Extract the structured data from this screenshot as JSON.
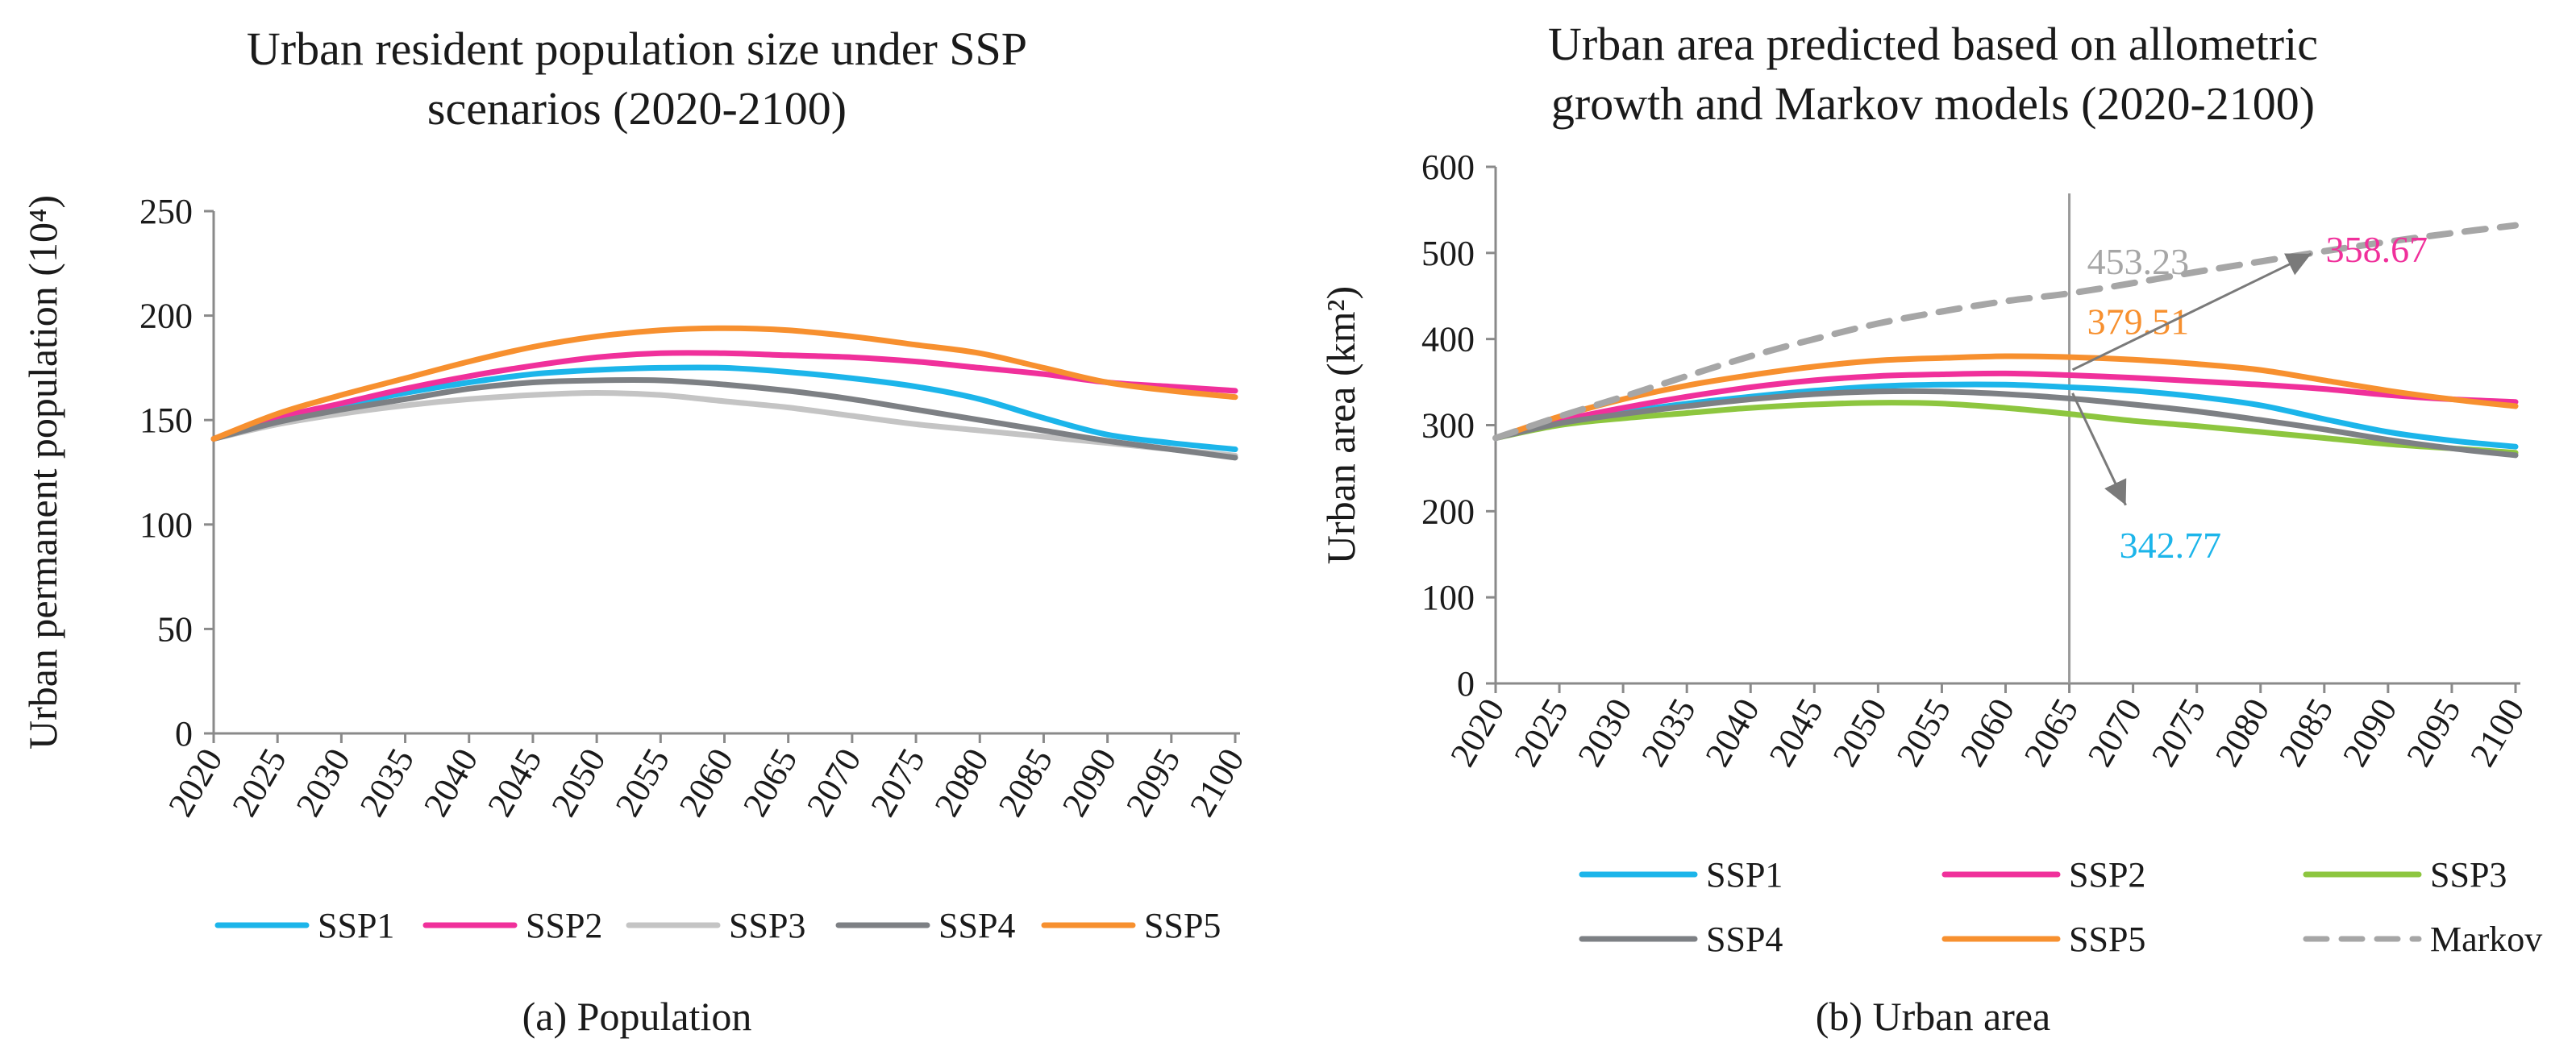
{
  "panels": {
    "a": {
      "title_line1": "Urban resident population size under SSP",
      "title_line2": "scenarios (2020-2100)",
      "caption": "(a) Population"
    },
    "b": {
      "title_line1": "Urban area predicted based on allometric",
      "title_line2": "growth and Markov models (2020-2100)",
      "caption": "(b) Urban area"
    }
  },
  "chart_data": [
    {
      "type": "line",
      "title": "Urban resident population size under SSP scenarios (2020-2100)",
      "xlabel": "",
      "ylabel": "Urban permanent population  (10⁴)",
      "ylim": [
        0,
        250
      ],
      "yticks": [
        0,
        50,
        100,
        150,
        200,
        250
      ],
      "grid": false,
      "legend_position": "bottom",
      "x": [
        "2020",
        "2025",
        "2030",
        "2035",
        "2040",
        "2045",
        "2050",
        "2055",
        "2060",
        "2065",
        "2070",
        "2075",
        "2080",
        "2085",
        "2090",
        "2095",
        "2100"
      ],
      "series": [
        {
          "name": "SSP1",
          "color": "#1cb5ea",
          "values": [
            141,
            150,
            157,
            163,
            168,
            172,
            174,
            175,
            175,
            173,
            170,
            166,
            160,
            151,
            143,
            139,
            136
          ]
        },
        {
          "name": "SSP2",
          "color": "#f0309b",
          "values": [
            141,
            151,
            158,
            165,
            171,
            176,
            180,
            182,
            182,
            181,
            180,
            178,
            175,
            172,
            168,
            166,
            164
          ]
        },
        {
          "name": "SSP3",
          "color": "#c4c4c4",
          "values": [
            141,
            148,
            153,
            157,
            160,
            162,
            163,
            162,
            159,
            156,
            152,
            148,
            145,
            142,
            139,
            136,
            133
          ]
        },
        {
          "name": "SSP4",
          "color": "#7d8084",
          "values": [
            141,
            149,
            155,
            160,
            165,
            168,
            169,
            169,
            167,
            164,
            160,
            155,
            150,
            145,
            140,
            136,
            132
          ]
        },
        {
          "name": "SSP5",
          "color": "#f7902f",
          "values": [
            141,
            153,
            162,
            170,
            178,
            185,
            190,
            193,
            194,
            193,
            190,
            186,
            182,
            175,
            168,
            164,
            161
          ]
        }
      ]
    },
    {
      "type": "line",
      "title": "Urban area predicted based on allometric growth and Markov models (2020-2100)",
      "xlabel": "",
      "ylabel": "Urban area (km²)",
      "ylim": [
        0,
        600
      ],
      "yticks": [
        0,
        100,
        200,
        300,
        400,
        500,
        600
      ],
      "grid": false,
      "legend_position": "bottom",
      "x": [
        "2020",
        "2025",
        "2030",
        "2035",
        "2040",
        "2045",
        "2050",
        "2055",
        "2060",
        "2065",
        "2070",
        "2075",
        "2080",
        "2085",
        "2090",
        "2095",
        "2100"
      ],
      "series": [
        {
          "name": "SSP1",
          "color": "#1cb5ea",
          "dashed": false,
          "values": [
            285,
            303,
            315,
            325,
            333,
            340,
            345,
            347,
            347,
            344,
            340,
            333,
            323,
            307,
            292,
            282,
            275
          ]
        },
        {
          "name": "SSP2",
          "color": "#f0309b",
          "dashed": false,
          "values": [
            285,
            305,
            320,
            333,
            344,
            352,
            357,
            359,
            360,
            358,
            355,
            351,
            347,
            342,
            335,
            330,
            327
          ]
        },
        {
          "name": "SSP3",
          "color": "#8dc63f",
          "dashed": false,
          "values": [
            285,
            300,
            308,
            314,
            320,
            324,
            326,
            325,
            320,
            313,
            305,
            299,
            292,
            285,
            278,
            273,
            268
          ]
        },
        {
          "name": "SSP4",
          "color": "#7d8084",
          "dashed": false,
          "values": [
            285,
            302,
            313,
            322,
            330,
            336,
            339,
            339,
            336,
            331,
            324,
            316,
            306,
            295,
            283,
            273,
            265
          ]
        },
        {
          "name": "SSP5",
          "color": "#f7902f",
          "dashed": false,
          "values": [
            285,
            310,
            330,
            346,
            358,
            368,
            375,
            378,
            380,
            379,
            376,
            371,
            364,
            352,
            340,
            330,
            322
          ]
        },
        {
          "name": "Markov",
          "color": "#a6a6a6",
          "dashed": true,
          "values": [
            285,
            310,
            333,
            357,
            380,
            400,
            418,
            432,
            444,
            453,
            465,
            478,
            490,
            502,
            513,
            523,
            532
          ]
        }
      ],
      "annotations": [
        {
          "text": "453.23",
          "color": "#a6a6a6",
          "x": "2065",
          "y": 453.23
        },
        {
          "text": "379.51",
          "color": "#f7902f",
          "x": "2065",
          "y": 379.51
        },
        {
          "text": "358.67",
          "color": "#f0309b",
          "x": "2065",
          "y": 358.67
        },
        {
          "text": "342.77",
          "color": "#1cb5ea",
          "x": "2065",
          "y": 342.77
        }
      ],
      "reference_line_x": "2065"
    }
  ]
}
